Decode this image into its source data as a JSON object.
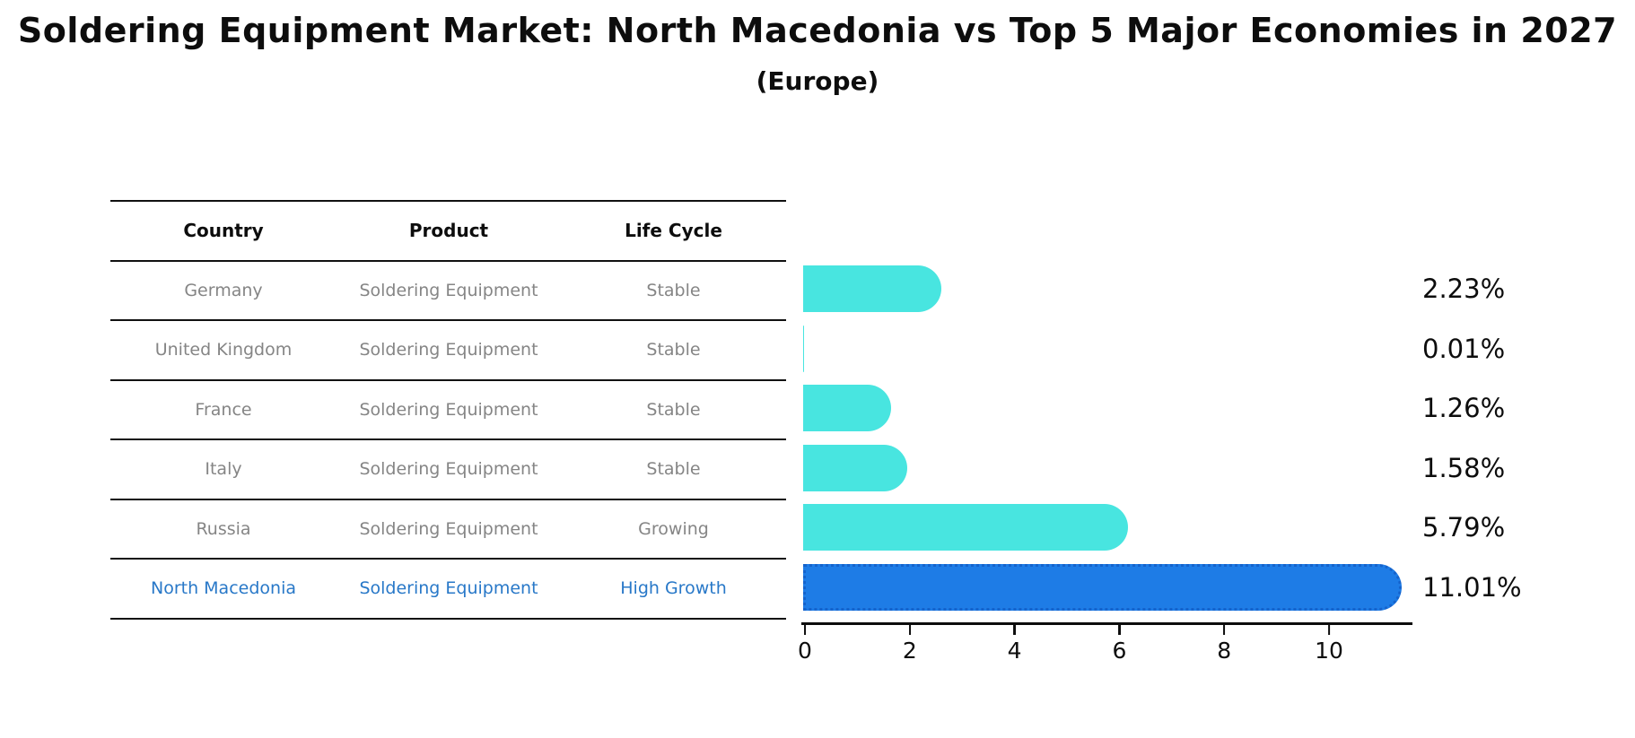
{
  "title": "Soldering Equipment Market: North Macedonia vs Top 5 Major Economies in 2027",
  "subtitle": "(Europe)",
  "table": {
    "headers": [
      "Country",
      "Product",
      "Life Cycle"
    ],
    "rows": [
      {
        "country": "Germany",
        "product": "Soldering Equipment",
        "life_cycle": "Stable",
        "highlight": false
      },
      {
        "country": "United Kingdom",
        "product": "Soldering Equipment",
        "life_cycle": "Stable",
        "highlight": false
      },
      {
        "country": "France",
        "product": "Soldering Equipment",
        "life_cycle": "Stable",
        "highlight": false
      },
      {
        "country": "Italy",
        "product": "Soldering Equipment",
        "life_cycle": "Stable",
        "highlight": false
      },
      {
        "country": "Russia",
        "product": "Soldering Equipment",
        "life_cycle": "Growing",
        "highlight": false
      },
      {
        "country": "North Macedonia",
        "product": "Soldering Equipment",
        "life_cycle": "High Growth",
        "highlight": true
      }
    ]
  },
  "chart_data": {
    "type": "bar",
    "orientation": "horizontal",
    "title": "Soldering Equipment Market: North Macedonia vs Top 5 Major Economies in 2027",
    "subtitle": "(Europe)",
    "categories": [
      "Germany",
      "United Kingdom",
      "France",
      "Italy",
      "Russia",
      "North Macedonia"
    ],
    "values": [
      2.23,
      0.01,
      1.26,
      1.58,
      5.79,
      11.01
    ],
    "value_labels": [
      "2.23%",
      "0.01%",
      "1.26%",
      "1.58%",
      "5.79%",
      "11.01%"
    ],
    "xlabel": "",
    "ylabel": "",
    "xlim": [
      0,
      11.6
    ],
    "xticks": [
      0,
      2,
      4,
      6,
      8,
      10
    ],
    "grid": false,
    "legend": false,
    "highlight_index": 5,
    "bar_color": "#48e5e0",
    "highlight_color": "#1e7ce6",
    "highlight_border_color": "#1563cc",
    "muted_text_color": "#858585",
    "highlight_text_color": "#2878c8"
  }
}
